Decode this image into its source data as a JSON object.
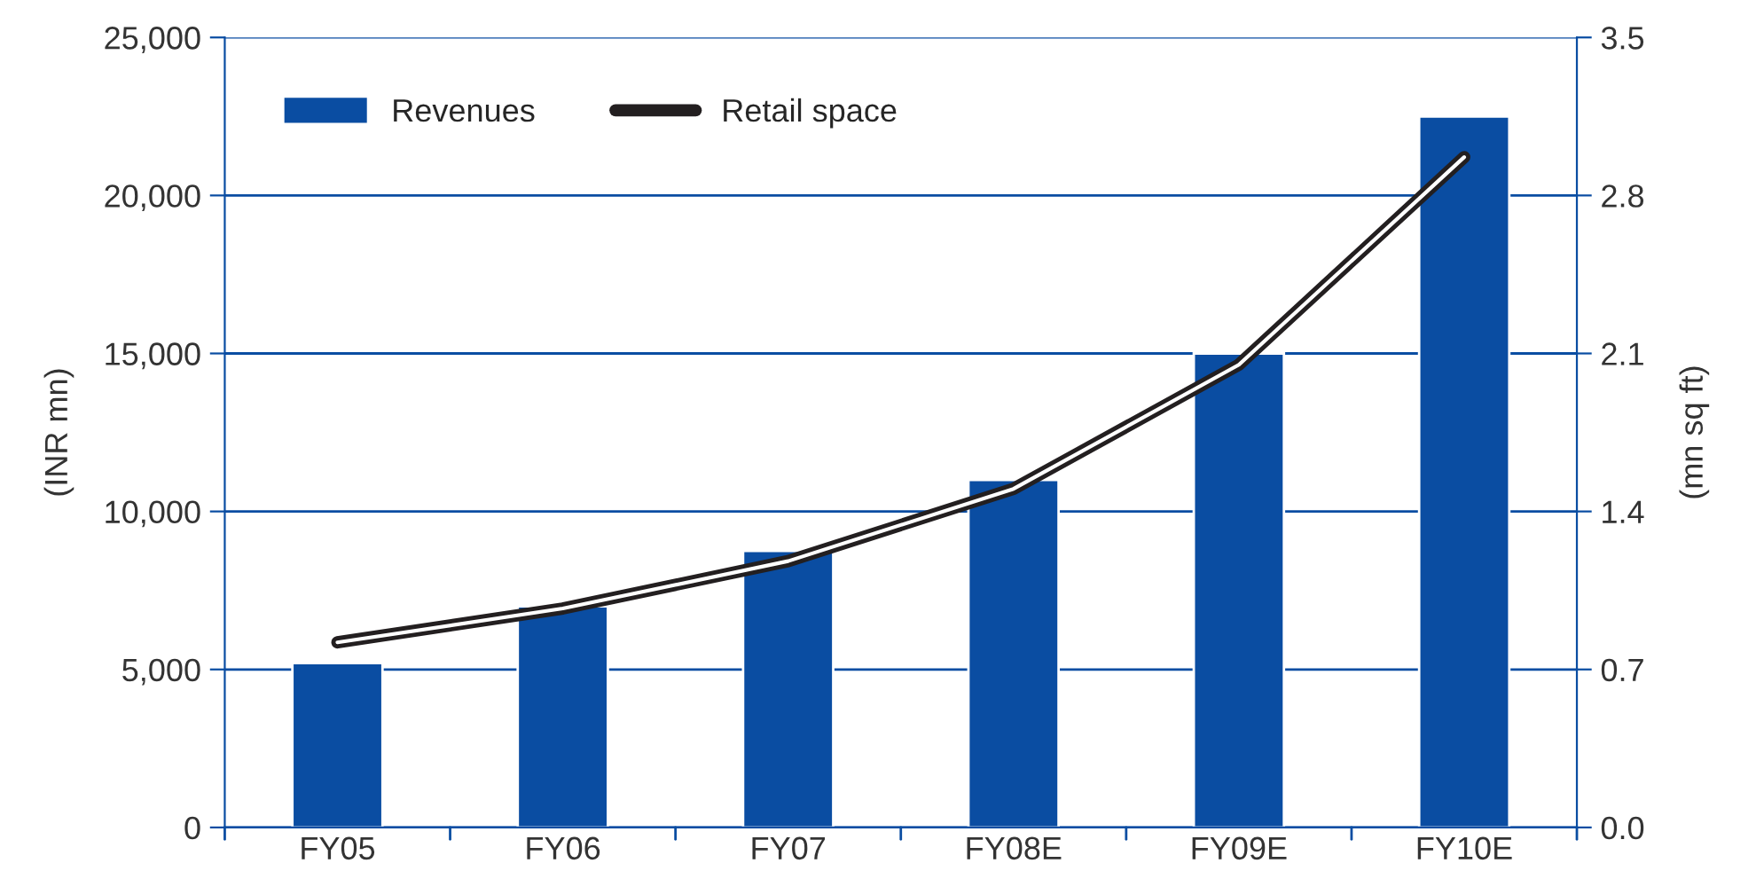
{
  "chart_data": {
    "type": "bar",
    "categories": [
      "FY05",
      "FY06",
      "FY07",
      "FY08E",
      "FY09E",
      "FY10E"
    ],
    "series": [
      {
        "name": "Revenues",
        "color": "#0a4da2",
        "values": [
          5200,
          7000,
          8750,
          11000,
          15000,
          22500
        ]
      },
      {
        "name": "Retail space",
        "type": "line",
        "axis": "y2",
        "color": "#231f20",
        "values": [
          0.82,
          0.97,
          1.18,
          1.5,
          2.05,
          2.97
        ]
      }
    ],
    "ylabel": "(INR mn)",
    "y2label": "(mn sq ft)",
    "ylim": [
      0,
      25000
    ],
    "yticks": [
      {
        "value": 0,
        "label": "0"
      },
      {
        "value": 5000,
        "label": "5,000"
      },
      {
        "value": 10000,
        "label": "10,000"
      },
      {
        "value": 15000,
        "label": "15,000"
      },
      {
        "value": 20000,
        "label": "20,000"
      },
      {
        "value": 25000,
        "label": "25,000"
      }
    ],
    "y2lim": [
      0,
      3.5
    ],
    "y2ticks": [
      {
        "value": 0,
        "label": "0.0"
      },
      {
        "value": 0.7,
        "label": "0.7"
      },
      {
        "value": 1.4,
        "label": "1.4"
      },
      {
        "value": 2.1,
        "label": "2.1"
      },
      {
        "value": 2.8,
        "label": "2.8"
      },
      {
        "value": 3.5,
        "label": "3.5"
      }
    ],
    "grid": "y",
    "legend": "top left"
  }
}
